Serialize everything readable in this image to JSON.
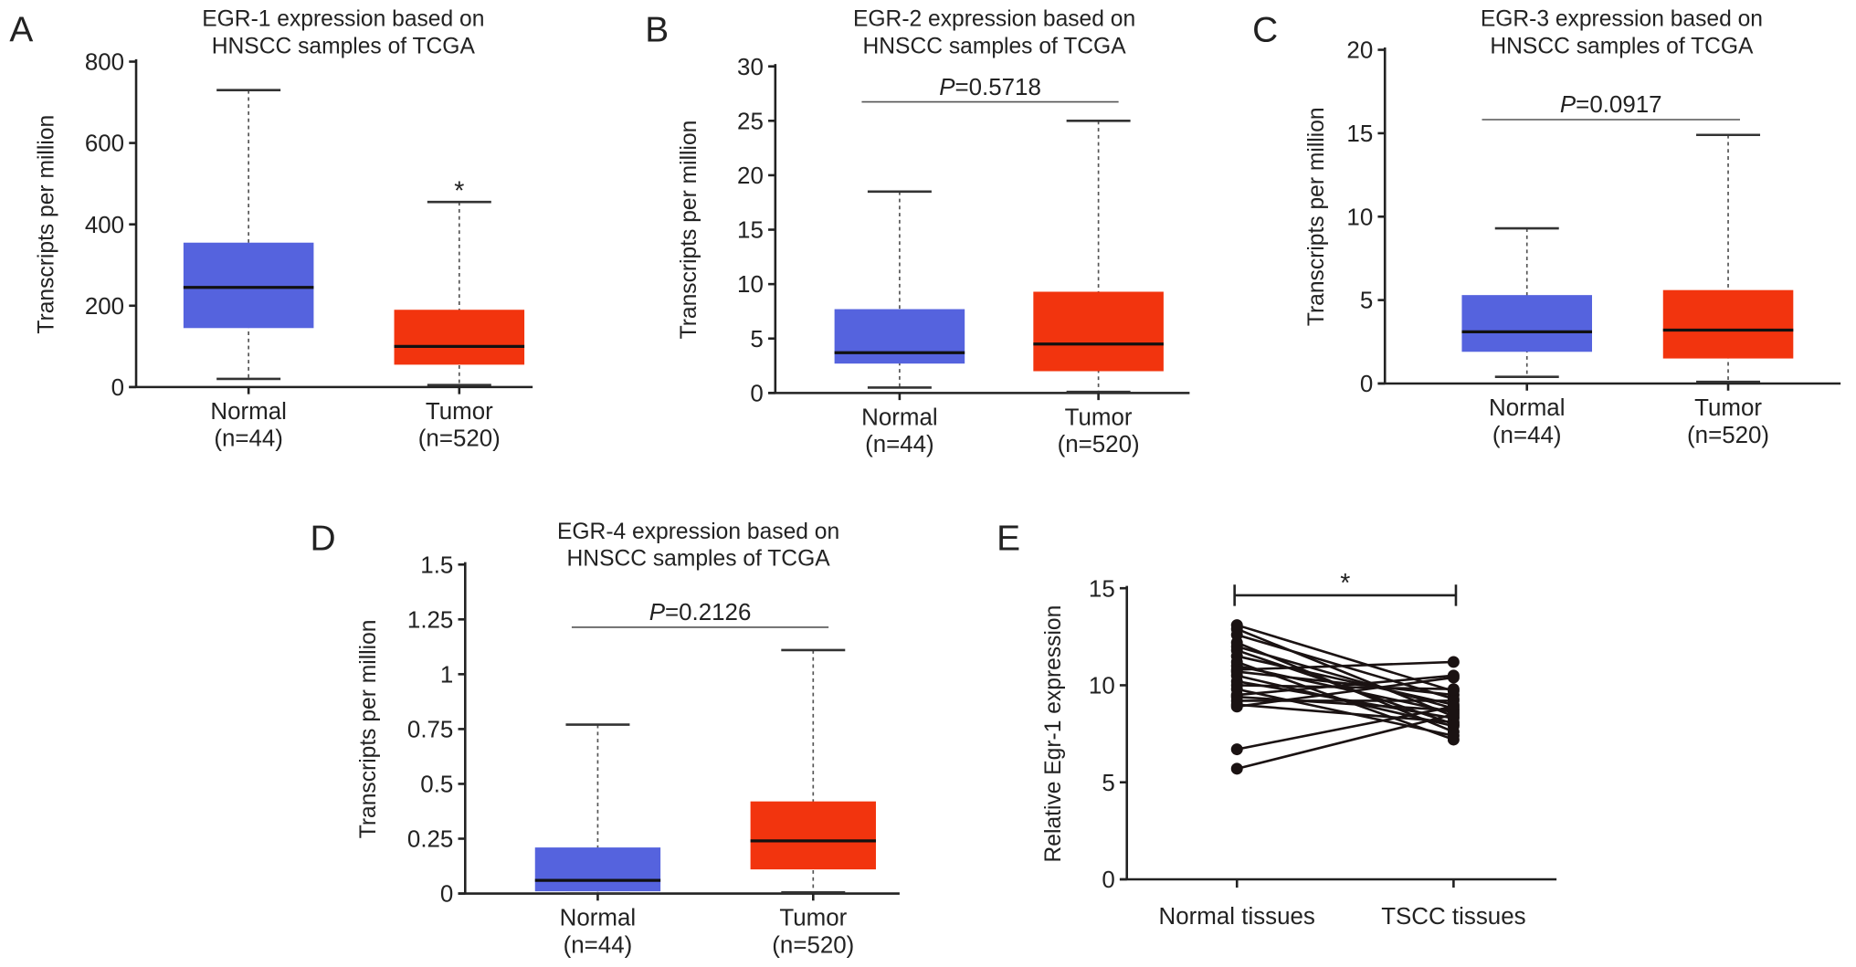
{
  "colors": {
    "normal": "#5563DE",
    "tumor": "#F2340E",
    "axis": "#222222"
  },
  "chart_data": [
    {
      "panel": "A",
      "type": "box",
      "title": [
        "EGR-1 expression based on",
        "HNSCC samples of TCGA"
      ],
      "ylabel": "Transcripts per million",
      "ylim": [
        0,
        800
      ],
      "yticks": [
        0,
        200,
        400,
        600,
        800
      ],
      "ytick_labels": [
        "0",
        "200",
        "400",
        "600",
        "800"
      ],
      "groups": [
        {
          "label": "Normal",
          "n": "(n=44)",
          "min": 20,
          "q1": 145,
          "median": 245,
          "q3": 355,
          "max": 730
        },
        {
          "label": "Tumor",
          "n": "(n=520)",
          "min": 5,
          "q1": 55,
          "median": 100,
          "q3": 190,
          "max": 455,
          "annotation": "*"
        }
      ]
    },
    {
      "panel": "B",
      "type": "box",
      "title": [
        "EGR-2 expression based on",
        "HNSCC samples of TCGA"
      ],
      "ylabel": "Transcripts per million",
      "ylim": [
        0,
        30
      ],
      "yticks": [
        0,
        5,
        10,
        15,
        20,
        25,
        30
      ],
      "ytick_labels": [
        "0",
        "5",
        "10",
        "15",
        "20",
        "25",
        "30"
      ],
      "pvalue": {
        "label": "P",
        "value": "=0.5718"
      },
      "groups": [
        {
          "label": "Normal",
          "n": "(n=44)",
          "min": 0.5,
          "q1": 2.7,
          "median": 3.7,
          "q3": 7.7,
          "max": 18.5
        },
        {
          "label": "Tumor",
          "n": "(n=520)",
          "min": 0.1,
          "q1": 2.0,
          "median": 4.5,
          "q3": 9.3,
          "max": 25
        }
      ]
    },
    {
      "panel": "C",
      "type": "box",
      "title": [
        "EGR-3 expression based on",
        "HNSCC samples of TCGA"
      ],
      "ylabel": "Transcripts per million",
      "ylim": [
        0,
        20
      ],
      "yticks": [
        0,
        5,
        10,
        15,
        20
      ],
      "ytick_labels": [
        "0",
        "5",
        "10",
        "15",
        "20"
      ],
      "pvalue": {
        "label": "P",
        "value": "=0.0917"
      },
      "groups": [
        {
          "label": "Normal",
          "n": "(n=44)",
          "min": 0.4,
          "q1": 1.9,
          "median": 3.1,
          "q3": 5.3,
          "max": 9.3
        },
        {
          "label": "Tumor",
          "n": "(n=520)",
          "min": 0.1,
          "q1": 1.5,
          "median": 3.2,
          "q3": 5.6,
          "max": 14.9
        }
      ]
    },
    {
      "panel": "D",
      "type": "box",
      "title": [
        "EGR-4 expression based on",
        "HNSCC samples of TCGA"
      ],
      "ylabel": "Transcripts per million",
      "ylim": [
        0,
        1.5
      ],
      "yticks": [
        0,
        0.25,
        0.5,
        0.75,
        1,
        1.25,
        1.5
      ],
      "ytick_labels": [
        "0",
        "0.25",
        "0.5",
        "0.75",
        "1",
        "1.25",
        "1.5"
      ],
      "pvalue": {
        "label": "P",
        "value": "=0.2126"
      },
      "groups": [
        {
          "label": "Normal",
          "n": "(n=44)",
          "min": 0.0,
          "q1": 0.01,
          "median": 0.06,
          "q3": 0.21,
          "max": 0.77
        },
        {
          "label": "Tumor",
          "n": "(n=520)",
          "min": 0.005,
          "q1": 0.11,
          "median": 0.24,
          "q3": 0.42,
          "max": 1.11
        }
      ]
    },
    {
      "panel": "E",
      "type": "line",
      "ylabel": "Relative Egr-1 expression",
      "ylim": [
        0,
        15
      ],
      "yticks": [
        0,
        5,
        10,
        15
      ],
      "ytick_labels": [
        "0",
        "5",
        "10",
        "15"
      ],
      "categories": [
        "Normal tissues",
        "TSCC tissues"
      ],
      "annotation": "*",
      "pairs": [
        [
          13.1,
          9.7
        ],
        [
          12.9,
          8.4
        ],
        [
          12.6,
          9.3
        ],
        [
          12.2,
          7.6
        ],
        [
          12.0,
          8.8
        ],
        [
          11.8,
          8.0
        ],
        [
          11.5,
          9.0
        ],
        [
          11.2,
          7.2
        ],
        [
          11.0,
          8.6
        ],
        [
          10.8,
          11.2
        ],
        [
          10.7,
          9.5
        ],
        [
          10.5,
          7.9
        ],
        [
          10.2,
          8.3
        ],
        [
          10.0,
          9.8
        ],
        [
          9.8,
          7.4
        ],
        [
          9.5,
          10.5
        ],
        [
          9.4,
          8.7
        ],
        [
          9.2,
          9.2
        ],
        [
          9.0,
          8.1
        ],
        [
          8.9,
          10.4
        ],
        [
          6.7,
          8.9
        ],
        [
          5.7,
          8.5
        ]
      ]
    }
  ]
}
